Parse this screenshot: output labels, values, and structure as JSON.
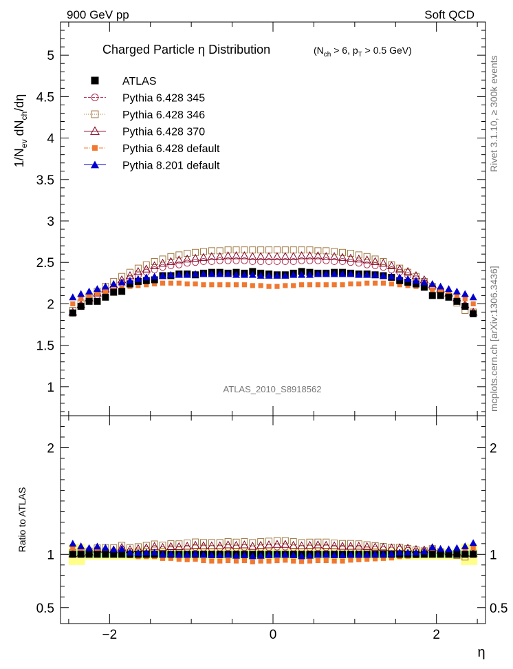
{
  "header": {
    "left": "900 GeV pp",
    "right": "Soft QCD"
  },
  "side_text": {
    "rivet": "Rivet 3.1.10, ≥ 300k events",
    "mcplots": "mcplots.cern.ch [arXiv:1306.3436]"
  },
  "watermark": "ATLAS_2010_S8918562",
  "chart_data": {
    "type": "scatter",
    "title": "Charged Particle  η Distribution",
    "subtitle": "(N_ch > 6, p_T > 0.5 GeV)",
    "xlabel": "η",
    "ylabel": "1/N_ev dN_ch/dη",
    "ratio_ylabel": "Ratio to ATLAS",
    "xlim": [
      -2.6,
      2.6
    ],
    "ylim": [
      0.65,
      5.4
    ],
    "ratio_ylim": [
      0.35,
      2.3
    ],
    "xticks": [
      -2,
      0,
      2
    ],
    "yticks": [
      1,
      1.5,
      2,
      2.5,
      3,
      3.5,
      4,
      4.5,
      5
    ],
    "ratio_yticks": [
      0.5,
      1,
      2
    ],
    "x": [
      -2.45,
      -2.35,
      -2.25,
      -2.15,
      -2.05,
      -1.95,
      -1.85,
      -1.75,
      -1.65,
      -1.55,
      -1.45,
      -1.35,
      -1.25,
      -1.15,
      -1.05,
      -0.95,
      -0.85,
      -0.75,
      -0.65,
      -0.55,
      -0.45,
      -0.35,
      -0.25,
      -0.15,
      -0.05,
      0.05,
      0.15,
      0.25,
      0.35,
      0.45,
      0.55,
      0.65,
      0.75,
      0.85,
      0.95,
      1.05,
      1.15,
      1.25,
      1.35,
      1.45,
      1.55,
      1.65,
      1.75,
      1.85,
      1.95,
      2.05,
      2.15,
      2.25,
      2.35,
      2.45
    ],
    "series": [
      {
        "name": "ATLAS",
        "color": "#000000",
        "marker": "square-filled",
        "values": [
          1.89,
          1.97,
          2.03,
          2.03,
          2.08,
          2.14,
          2.15,
          2.24,
          2.27,
          2.28,
          2.29,
          2.34,
          2.34,
          2.36,
          2.36,
          2.35,
          2.37,
          2.38,
          2.38,
          2.37,
          2.38,
          2.37,
          2.39,
          2.37,
          2.36,
          2.35,
          2.35,
          2.37,
          2.39,
          2.38,
          2.37,
          2.37,
          2.38,
          2.38,
          2.37,
          2.36,
          2.36,
          2.35,
          2.34,
          2.32,
          2.28,
          2.26,
          2.24,
          2.2,
          2.1,
          2.1,
          2.08,
          2.03,
          1.97,
          1.88
        ]
      },
      {
        "name": "Pythia 6.428 345",
        "color": "#b03050",
        "marker": "circle-open",
        "line": "dashed",
        "values": [
          1.89,
          1.98,
          2.05,
          2.1,
          2.15,
          2.2,
          2.25,
          2.3,
          2.34,
          2.38,
          2.41,
          2.44,
          2.46,
          2.47,
          2.49,
          2.5,
          2.51,
          2.51,
          2.52,
          2.52,
          2.52,
          2.52,
          2.51,
          2.51,
          2.51,
          2.51,
          2.51,
          2.51,
          2.52,
          2.52,
          2.52,
          2.52,
          2.51,
          2.51,
          2.5,
          2.49,
          2.47,
          2.46,
          2.44,
          2.41,
          2.38,
          2.34,
          2.3,
          2.25,
          2.2,
          2.15,
          2.1,
          2.05,
          1.98,
          1.89
        ]
      },
      {
        "name": "Pythia 6.428 346",
        "color": "#a07840",
        "marker": "square-open",
        "line": "dotted",
        "values": [
          1.92,
          2.01,
          2.09,
          2.15,
          2.21,
          2.27,
          2.33,
          2.38,
          2.43,
          2.47,
          2.51,
          2.54,
          2.57,
          2.59,
          2.61,
          2.62,
          2.63,
          2.64,
          2.64,
          2.65,
          2.65,
          2.65,
          2.65,
          2.65,
          2.65,
          2.65,
          2.65,
          2.65,
          2.65,
          2.65,
          2.64,
          2.64,
          2.63,
          2.62,
          2.61,
          2.59,
          2.57,
          2.54,
          2.51,
          2.47,
          2.43,
          2.38,
          2.33,
          2.27,
          2.21,
          2.15,
          2.09,
          2.01,
          1.92,
          1.9
        ]
      },
      {
        "name": "Pythia 6.428 370",
        "color": "#800020",
        "marker": "triangle-open",
        "line": "solid",
        "values": [
          1.9,
          1.99,
          2.07,
          2.13,
          2.18,
          2.23,
          2.29,
          2.34,
          2.39,
          2.42,
          2.46,
          2.49,
          2.51,
          2.53,
          2.54,
          2.55,
          2.56,
          2.57,
          2.57,
          2.58,
          2.58,
          2.58,
          2.57,
          2.57,
          2.57,
          2.57,
          2.57,
          2.57,
          2.58,
          2.58,
          2.58,
          2.57,
          2.57,
          2.56,
          2.55,
          2.54,
          2.53,
          2.51,
          2.49,
          2.46,
          2.42,
          2.39,
          2.34,
          2.29,
          2.23,
          2.18,
          2.13,
          2.07,
          1.99,
          1.9
        ]
      },
      {
        "name": "Pythia 6.428 default",
        "color": "#f07830",
        "marker": "square-filled-small",
        "line": "dashdot",
        "values": [
          2.0,
          2.06,
          2.1,
          2.13,
          2.15,
          2.17,
          2.19,
          2.21,
          2.22,
          2.23,
          2.24,
          2.25,
          2.25,
          2.25,
          2.24,
          2.24,
          2.23,
          2.23,
          2.23,
          2.23,
          2.23,
          2.23,
          2.22,
          2.22,
          2.21,
          2.21,
          2.22,
          2.22,
          2.23,
          2.23,
          2.23,
          2.23,
          2.23,
          2.23,
          2.24,
          2.24,
          2.25,
          2.25,
          2.25,
          2.24,
          2.23,
          2.22,
          2.21,
          2.19,
          2.17,
          2.15,
          2.13,
          2.1,
          2.06,
          2.0
        ]
      },
      {
        "name": "Pythia 8.201 default",
        "color": "#0000cc",
        "marker": "triangle-filled",
        "line": "solid",
        "values": [
          2.08,
          2.12,
          2.15,
          2.18,
          2.21,
          2.24,
          2.26,
          2.28,
          2.3,
          2.32,
          2.33,
          2.34,
          2.35,
          2.35,
          2.35,
          2.36,
          2.36,
          2.36,
          2.36,
          2.36,
          2.35,
          2.35,
          2.35,
          2.34,
          2.34,
          2.34,
          2.34,
          2.35,
          2.35,
          2.35,
          2.36,
          2.36,
          2.36,
          2.36,
          2.36,
          2.35,
          2.35,
          2.35,
          2.34,
          2.33,
          2.32,
          2.3,
          2.28,
          2.26,
          2.24,
          2.21,
          2.18,
          2.15,
          2.12,
          2.08
        ]
      }
    ],
    "ratio_band": {
      "inner_color": "#99ff99",
      "outer_color": "#ffff88",
      "inner_halfwidth": 0.03,
      "outer_halfwidth": 0.05,
      "edge_outer_halfwidth": 0.1
    },
    "legend_position": "top-left"
  }
}
